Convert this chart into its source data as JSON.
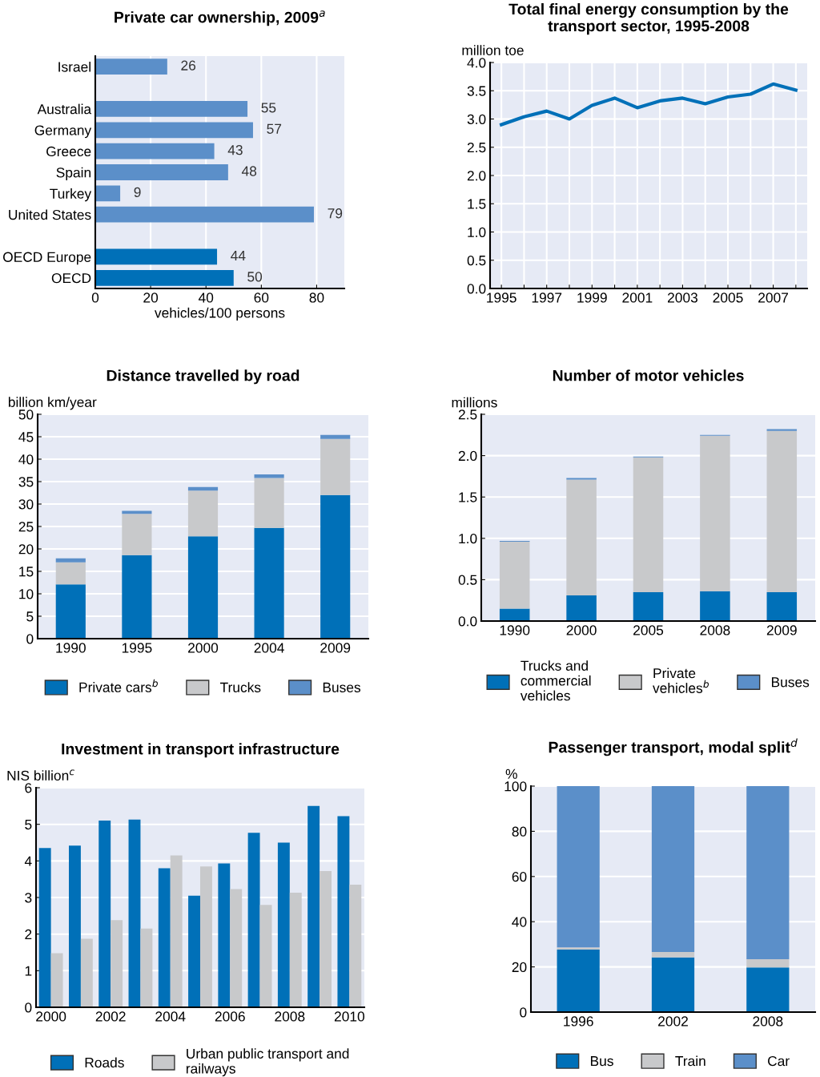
{
  "chart_data": [
    {
      "type": "bar",
      "orientation": "horizontal",
      "title": "Private car ownership, 2009$^{a}$",
      "xlabel": "vehicles/100 persons",
      "categories": [
        "Israel",
        null,
        "Australia",
        "Germany",
        "Greece",
        "Spain",
        "Turkey",
        "United States",
        null,
        "OECD Europe",
        "OECD"
      ],
      "values": [
        26,
        null,
        55,
        57,
        43,
        48,
        9,
        79,
        null,
        44,
        50
      ],
      "colors": [
        "#5b8fc9",
        null,
        "#5b8fc9",
        "#5b8fc9",
        "#5b8fc9",
        "#5b8fc9",
        "#5b8fc9",
        "#5b8fc9",
        null,
        "#0070b8",
        "#0070b8"
      ],
      "xlim": [
        0,
        90
      ],
      "xticks": [
        0,
        20,
        40,
        60,
        80
      ],
      "grid": "x",
      "data_labels": true
    },
    {
      "type": "line",
      "title": "Total final energy consumption by the\ntransport sector, 1995-2008",
      "ylabel": "million toe",
      "series": [
        {
          "color": "#0070b8",
          "x": [
            1995,
            1996,
            1997,
            1998,
            1999,
            2000,
            2001,
            2002,
            2003,
            2004,
            2005,
            2006,
            2007,
            2008
          ],
          "values": [
            2.9,
            3.04,
            3.14,
            3.0,
            3.24,
            3.37,
            3.2,
            3.32,
            3.37,
            3.27,
            3.39,
            3.44,
            3.62,
            3.51
          ]
        }
      ],
      "xlim": [
        1994.5,
        2008.5
      ],
      "xticks": [
        1995,
        {
          "value": 1996,
          "label": null
        },
        1997,
        {
          "value": 1998,
          "label": null
        },
        1999,
        {
          "value": 2000,
          "label": null
        },
        2001,
        {
          "value": 2002,
          "label": null
        },
        2003,
        {
          "value": 2004,
          "label": null
        },
        2005,
        {
          "value": 2006,
          "label": null
        },
        2007,
        {
          "value": 2008,
          "label": null
        }
      ],
      "ylim": [
        0,
        4
      ],
      "yticks": [
        {
          "value": 0,
          "label": "0.0"
        },
        {
          "value": 0.5,
          "label": "0.5"
        },
        {
          "value": 1,
          "label": "1.0"
        },
        {
          "value": 1.5,
          "label": "1.5"
        },
        {
          "value": 2,
          "label": "2.0"
        },
        {
          "value": 2.5,
          "label": "2.5"
        },
        {
          "value": 3,
          "label": "3.0"
        },
        {
          "value": 3.5,
          "label": "3.5"
        },
        {
          "value": 4,
          "label": "4.0"
        }
      ],
      "grid": true,
      "line_style": "solid",
      "marker": "none"
    },
    {
      "type": "bar",
      "stacked": true,
      "title": "Distance travelled by road",
      "ylabel": "billion km/year",
      "categories": [
        "1990",
        "1995",
        "2000",
        "2004",
        "2009"
      ],
      "series": [
        {
          "name": "Private cars$^{b}$",
          "color": "#0070b8",
          "values": [
            12.1,
            18.6,
            22.8,
            24.7,
            32.0
          ]
        },
        {
          "name": "Trucks",
          "color": "#c8c9cb",
          "values": [
            4.9,
            9.2,
            10.2,
            11.1,
            12.5
          ]
        },
        {
          "name": "Buses",
          "color": "#5b8fc9",
          "values": [
            0.9,
            0.7,
            0.8,
            0.8,
            0.9
          ]
        }
      ],
      "ylim": [
        0,
        50
      ],
      "yticks": [
        0,
        5,
        10,
        15,
        20,
        25,
        30,
        35,
        40,
        45,
        50
      ],
      "grid": "y",
      "legend": "bottom"
    },
    {
      "type": "bar",
      "stacked": true,
      "title": "Number of motor vehicles",
      "ylabel": "millions",
      "categories": [
        "1990",
        "2000",
        "2005",
        "2008",
        "2009"
      ],
      "series": [
        {
          "name": "Trucks and\ncommercial\nvehicles",
          "color": "#0070b8",
          "values": [
            0.15,
            0.31,
            0.35,
            0.36,
            0.35
          ]
        },
        {
          "name": "Private\nvehicles$^{b}$",
          "color": "#c8c9cb",
          "values": [
            0.81,
            1.4,
            1.63,
            1.88,
            1.95
          ]
        },
        {
          "name": "Buses",
          "color": "#5b8fc9",
          "values": [
            0.01,
            0.02,
            0.01,
            0.01,
            0.02
          ]
        }
      ],
      "ylim": [
        0,
        2.5
      ],
      "yticks": [
        {
          "value": 0,
          "label": "0.0"
        },
        {
          "value": 0.5,
          "label": "0.5"
        },
        {
          "value": 1,
          "label": "1.0"
        },
        {
          "value": 1.5,
          "label": "1.5"
        },
        {
          "value": 2,
          "label": "2.0"
        },
        {
          "value": 2.5,
          "label": "2.5"
        }
      ],
      "grid": "y",
      "legend": "bottom"
    },
    {
      "type": "bar",
      "title": "Investment in transport infrastructure",
      "ylabel": "NIS billion$^{c}$",
      "categories": [
        "2000",
        null,
        "2002",
        null,
        "2004",
        null,
        "2006",
        null,
        "2008",
        null,
        "2010"
      ],
      "series": [
        {
          "name": "Roads",
          "color": "#0070b8",
          "values": [
            4.35,
            4.42,
            5.1,
            5.13,
            3.8,
            3.05,
            3.93,
            4.77,
            4.5,
            5.5,
            5.22
          ]
        },
        {
          "name": "Urban public transport and\nrailways",
          "color": "#c8c9cb",
          "values": [
            1.48,
            1.87,
            2.38,
            2.15,
            4.15,
            3.85,
            3.23,
            2.8,
            3.13,
            3.72,
            3.35
          ]
        }
      ],
      "ylim": [
        0,
        6
      ],
      "yticks": [
        0,
        1,
        2,
        3,
        4,
        5,
        6
      ],
      "grid": "y",
      "legend": "bottom"
    },
    {
      "type": "bar",
      "stacked": true,
      "title": "Passenger transport, modal split$^{d}$",
      "ylabel": "%",
      "categories": [
        "1996",
        "2002",
        "2008"
      ],
      "series": [
        {
          "name": "Bus",
          "color": "#0070b8",
          "values": [
            27.7,
            24.2,
            19.8
          ]
        },
        {
          "name": "Train",
          "color": "#c8c9cb",
          "values": [
            0.9,
            2.4,
            3.6
          ]
        },
        {
          "name": "Car",
          "color": "#5b8fc9",
          "values": [
            71.4,
            73.4,
            76.6
          ]
        }
      ],
      "ylim": [
        0,
        100
      ],
      "yticks": [
        0,
        20,
        40,
        60,
        80,
        100
      ],
      "grid": "y",
      "legend": "bottom"
    }
  ]
}
